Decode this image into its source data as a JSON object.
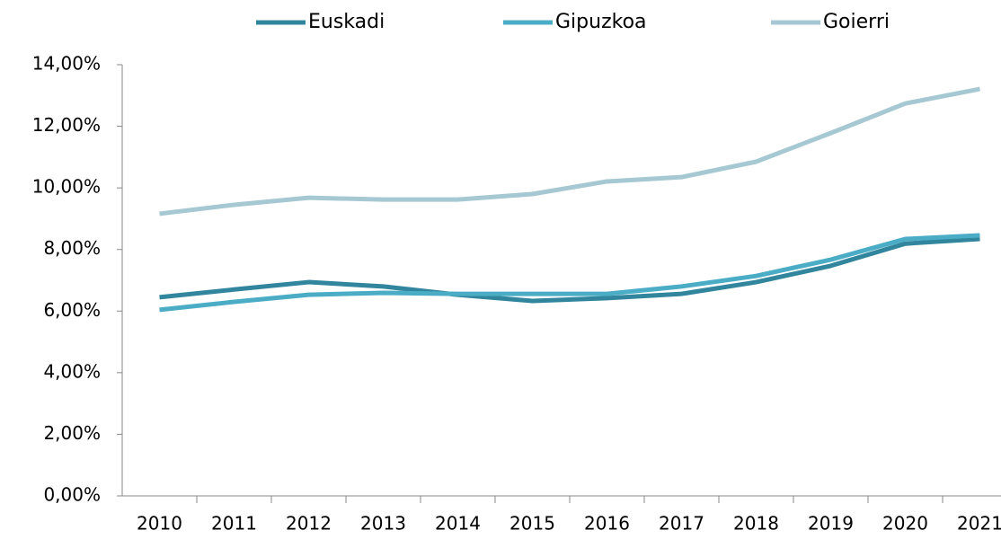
{
  "chart_data": {
    "type": "line",
    "categories": [
      "2010",
      "2011",
      "2012",
      "2013",
      "2014",
      "2015",
      "2016",
      "2017",
      "2018",
      "2019",
      "2020",
      "2021"
    ],
    "series": [
      {
        "name": "Euskadi",
        "color": "#31859c",
        "values": [
          6.45,
          6.7,
          6.94,
          6.8,
          6.53,
          6.33,
          6.42,
          6.56,
          6.94,
          7.47,
          8.19,
          8.34
        ]
      },
      {
        "name": "Gipuzkoa",
        "color": "#4bacc6",
        "values": [
          6.04,
          6.3,
          6.53,
          6.59,
          6.56,
          6.56,
          6.56,
          6.8,
          7.14,
          7.67,
          8.34,
          8.46
        ]
      },
      {
        "name": "Goierri",
        "color": "#a5c8d3",
        "values": [
          9.16,
          9.45,
          9.68,
          9.62,
          9.62,
          9.8,
          10.21,
          10.35,
          10.85,
          11.78,
          12.74,
          13.21
        ]
      }
    ],
    "ylim": [
      0,
      14
    ],
    "yticks": [
      {
        "value": 0,
        "label": "0,00%"
      },
      {
        "value": 2,
        "label": "2,00%"
      },
      {
        "value": 4,
        "label": "4,00%"
      },
      {
        "value": 6,
        "label": "6,00%"
      },
      {
        "value": 8,
        "label": "8,00%"
      },
      {
        "value": 10,
        "label": "10,00%"
      },
      {
        "value": 12,
        "label": "12,00%"
      },
      {
        "value": 14,
        "label": "14,00%"
      }
    ],
    "legend": "top",
    "grid": false
  }
}
